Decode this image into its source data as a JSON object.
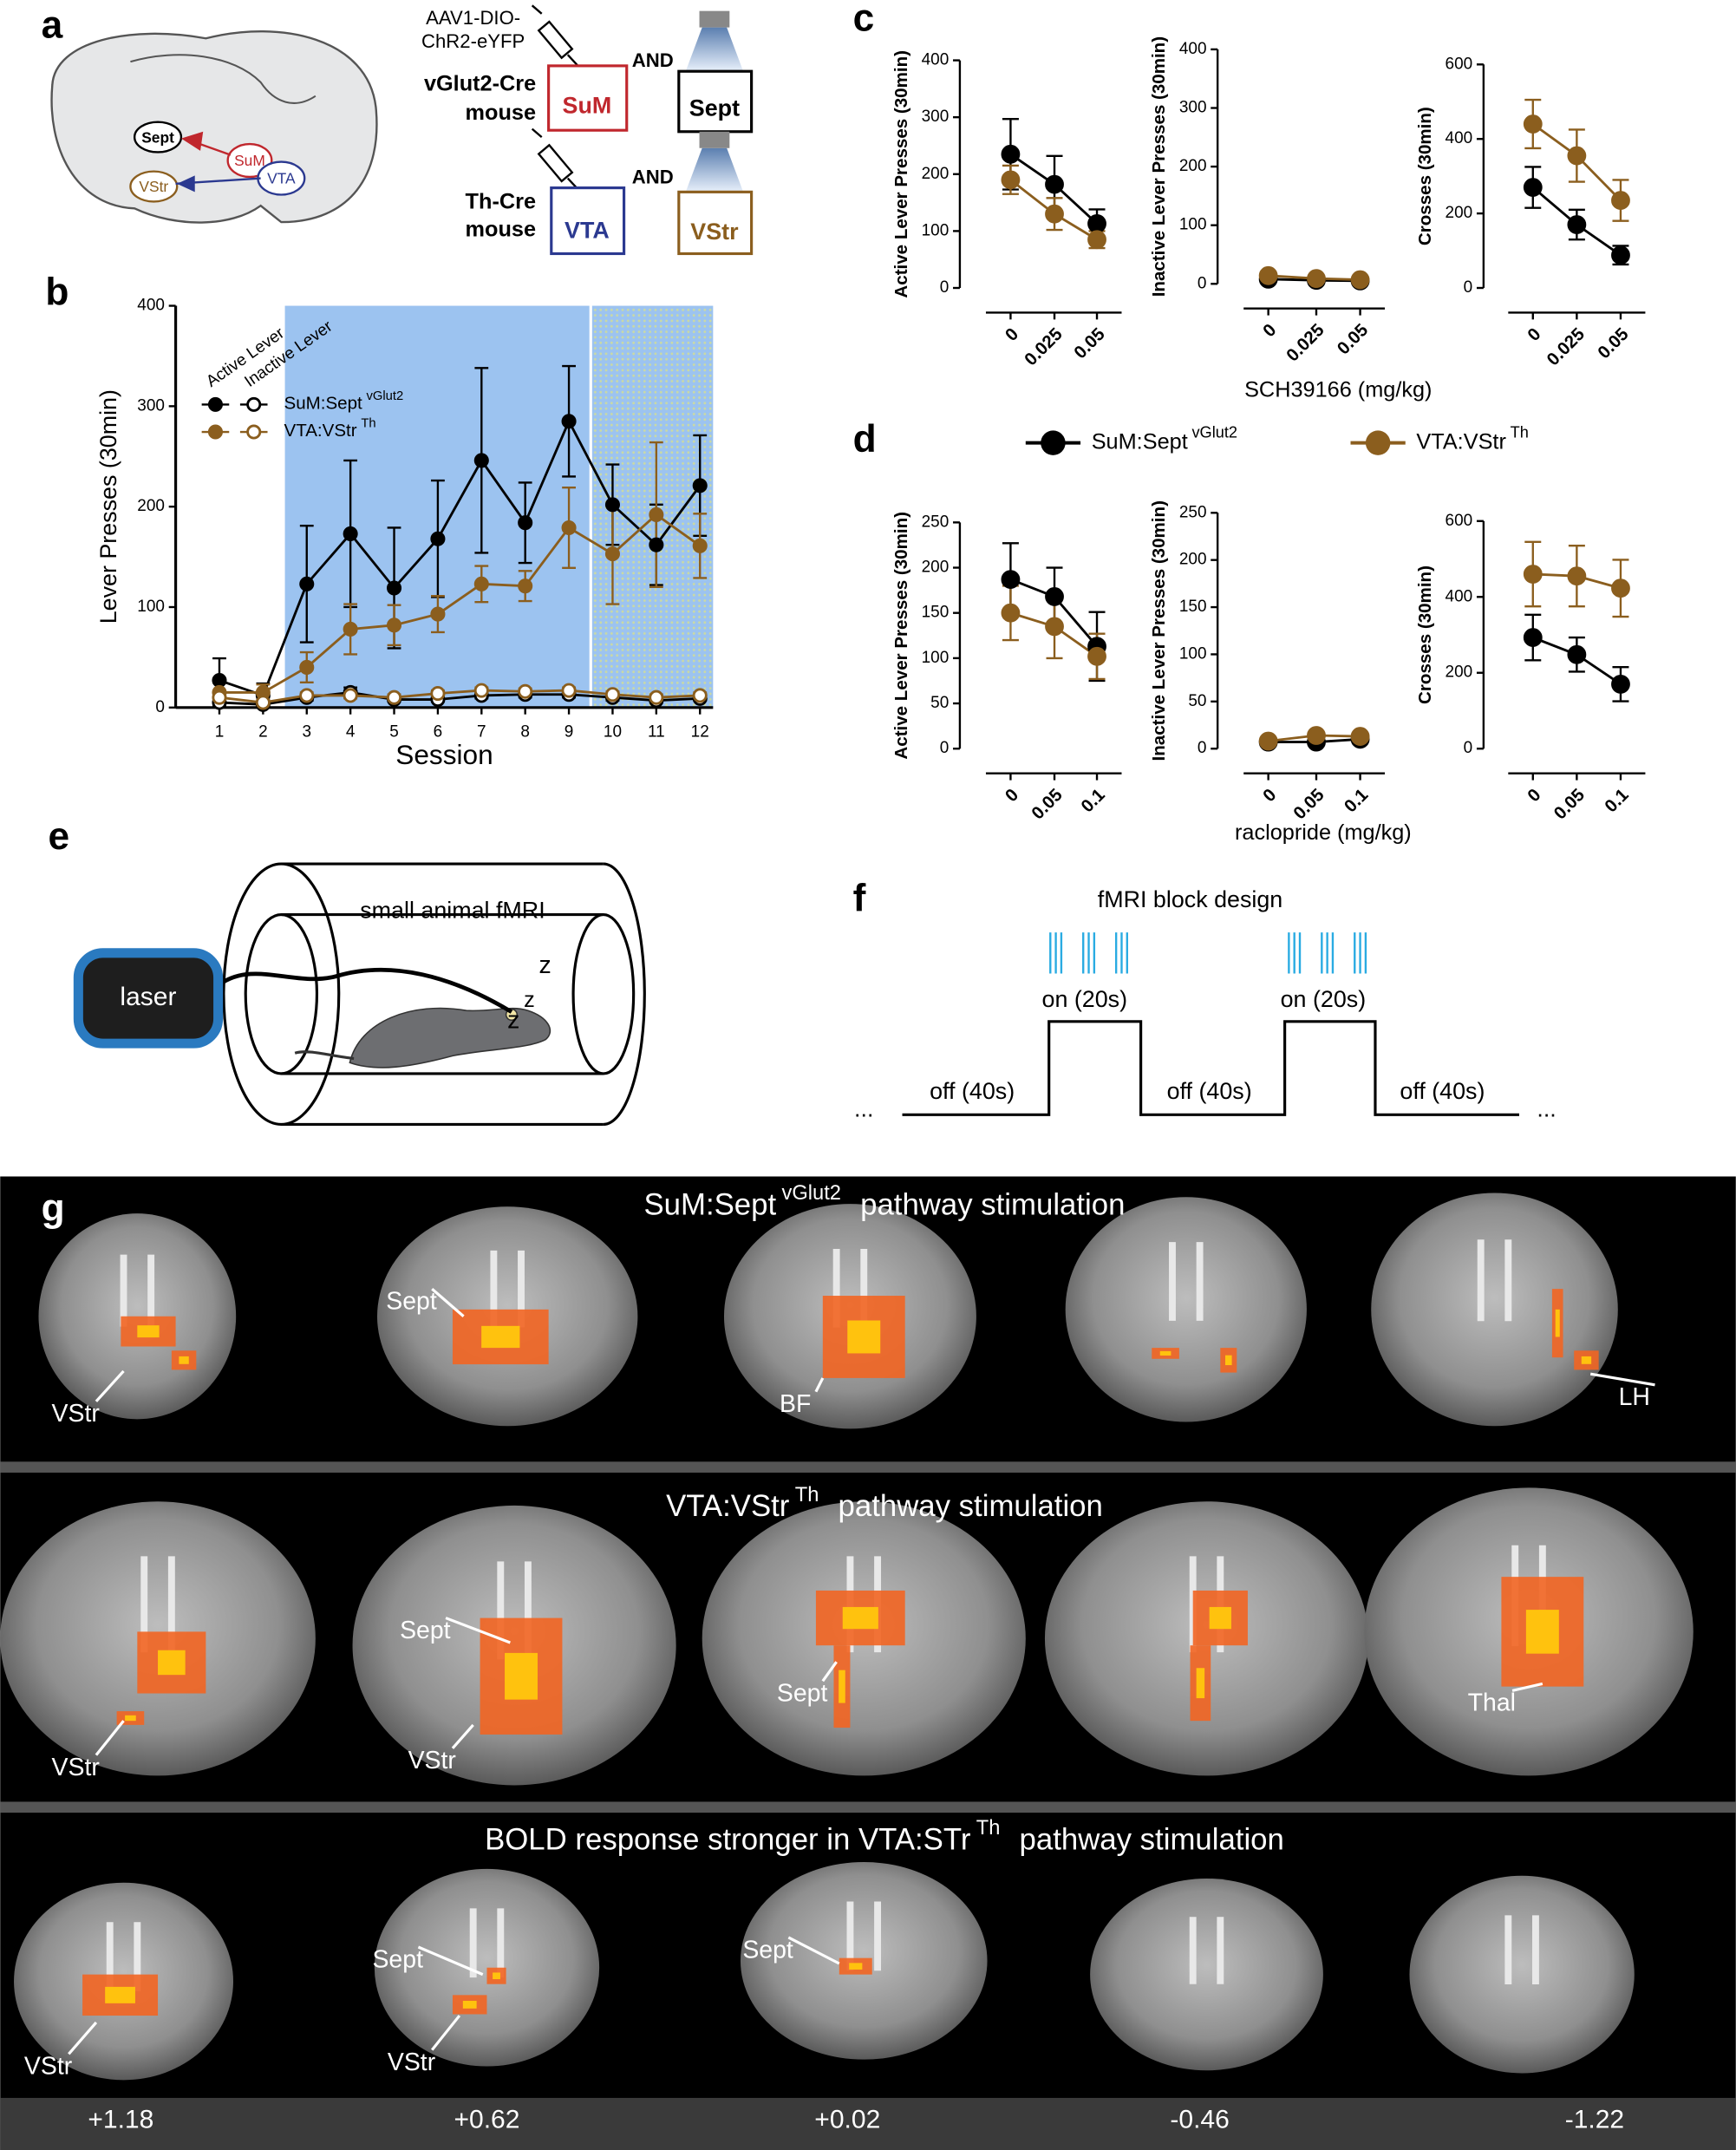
{
  "panel_labels": [
    "a",
    "b",
    "c",
    "d",
    "e",
    "f",
    "g"
  ],
  "panel_a": {
    "brain_labels": [
      "Sept",
      "SuM",
      "VStr",
      "VTA"
    ],
    "virus": [
      "AAV1-DIO-",
      "ChR2-eYFP"
    ],
    "rows": [
      {
        "mouse": [
          "vGlut2-Cre",
          "mouse"
        ],
        "source": "SuM",
        "and": "AND",
        "target": "Sept"
      },
      {
        "mouse": [
          "Th-Cre",
          "mouse"
        ],
        "source": "VTA",
        "and": "AND",
        "target": "VStr"
      }
    ]
  },
  "chart_data": [
    {
      "type": "line",
      "y_label": "Lever Presses (30min)",
      "x_label": "Session",
      "x": [
        1,
        2,
        3,
        4,
        5,
        6,
        7,
        8,
        9,
        10,
        11,
        12
      ],
      "xlim": [
        0,
        12.3
      ],
      "xticks": [
        1,
        2,
        3,
        4,
        5,
        6,
        7,
        8,
        9,
        10,
        11,
        12
      ],
      "ylim": [
        0,
        400
      ],
      "yticks": [
        0,
        100,
        200,
        300,
        400
      ],
      "shaded_regions": [
        {
          "from": 2.5,
          "to": 9.5,
          "color": "#9cc3f0"
        },
        {
          "from": 9.5,
          "to": 12.3,
          "color": "#a9c9d6",
          "pattern": "dotted"
        }
      ],
      "legend_columns": [
        "Active Lever",
        "Inactive Lever"
      ],
      "groups": [
        {
          "name": "SuM:Sept",
          "superscript": "vGlut2",
          "color": "#000000",
          "series": [
            {
              "marker": "filled",
              "values": [
                27,
                12,
                123,
                173,
                119,
                168,
                246,
                184,
                285,
                202,
                162,
                221
              ],
              "errors": [
                22,
                12,
                58,
                73,
                60,
                58,
                92,
                40,
                55,
                40,
                40,
                50
              ]
            },
            {
              "marker": "open",
              "values": [
                5,
                3,
                10,
                15,
                8,
                8,
                12,
                13,
                13,
                10,
                7,
                9
              ],
              "errors": [
                3,
                2,
                3,
                5,
                2,
                2,
                3,
                3,
                3,
                3,
                2,
                2
              ]
            }
          ]
        },
        {
          "name": "VTA:VStr",
          "superscript": "Th",
          "color": "#8b5e1e",
          "series": [
            {
              "marker": "filled",
              "values": [
                15,
                15,
                40,
                78,
                82,
                93,
                123,
                121,
                179,
                153,
                192,
                161
              ],
              "errors": [
                10,
                8,
                15,
                25,
                20,
                18,
                18,
                15,
                40,
                50,
                72,
                32
              ]
            },
            {
              "marker": "open",
              "values": [
                10,
                5,
                12,
                12,
                10,
                14,
                17,
                16,
                17,
                13,
                10,
                12
              ],
              "errors": [
                4,
                3,
                3,
                3,
                3,
                3,
                3,
                3,
                3,
                3,
                3,
                3
              ]
            }
          ]
        }
      ]
    },
    {
      "type": "line",
      "y_label": "Active Lever Presses (30min)",
      "categories": [
        "0",
        "0.025",
        "0.05"
      ],
      "ylim": [
        0,
        400
      ],
      "yticks": [
        0,
        100,
        200,
        300,
        400
      ],
      "series": [
        {
          "color": "#000000",
          "values": [
            235,
            182,
            113
          ],
          "errors": [
            62,
            50,
            25
          ]
        },
        {
          "color": "#8b5e1e",
          "values": [
            190,
            130,
            85
          ],
          "errors": [
            25,
            28,
            15
          ]
        }
      ]
    },
    {
      "type": "line",
      "y_label": "Inactive Lever Presses (30min)",
      "categories": [
        "0",
        "0.025",
        "0.05"
      ],
      "ylim": [
        0,
        400
      ],
      "yticks": [
        0,
        100,
        200,
        300,
        400
      ],
      "series": [
        {
          "color": "#000000",
          "values": [
            8,
            6,
            5
          ],
          "errors": [
            3,
            3,
            2
          ]
        },
        {
          "color": "#8b5e1e",
          "values": [
            14,
            9,
            7
          ],
          "errors": [
            4,
            3,
            2
          ]
        }
      ]
    },
    {
      "type": "line",
      "y_label": "Crosses (30min)",
      "categories": [
        "0",
        "0.025",
        "0.05"
      ],
      "ylim": [
        0,
        600
      ],
      "yticks": [
        0,
        200,
        400,
        600
      ],
      "series": [
        {
          "color": "#000000",
          "values": [
            270,
            170,
            88
          ],
          "errors": [
            55,
            40,
            25
          ]
        },
        {
          "color": "#8b5e1e",
          "values": [
            440,
            355,
            235
          ],
          "errors": [
            65,
            70,
            55
          ]
        }
      ]
    },
    {
      "type": "line",
      "y_label": "Active Lever Presses (30min)",
      "categories": [
        "0",
        "0.05",
        "0.1"
      ],
      "ylim": [
        0,
        250
      ],
      "yticks": [
        0,
        50,
        100,
        150,
        200,
        250
      ],
      "series": [
        {
          "color": "#000000",
          "values": [
            187,
            168,
            113
          ],
          "errors": [
            40,
            32,
            38
          ]
        },
        {
          "color": "#8b5e1e",
          "values": [
            150,
            135,
            102
          ],
          "errors": [
            30,
            35,
            25
          ]
        }
      ]
    },
    {
      "type": "line",
      "y_label": "Inactive Lever Presses (30min)",
      "categories": [
        "0",
        "0.05",
        "0.1"
      ],
      "ylim": [
        0,
        250
      ],
      "yticks": [
        0,
        50,
        100,
        150,
        200,
        250
      ],
      "series": [
        {
          "color": "#000000",
          "values": [
            7,
            7,
            10
          ],
          "errors": [
            2,
            2,
            3
          ]
        },
        {
          "color": "#8b5e1e",
          "values": [
            8,
            14,
            13
          ],
          "errors": [
            3,
            3,
            3
          ]
        }
      ]
    },
    {
      "type": "line",
      "y_label": "Crosses (30min)",
      "categories": [
        "0",
        "0.05",
        "0.1"
      ],
      "ylim": [
        0,
        600
      ],
      "yticks": [
        0,
        200,
        400,
        600
      ],
      "series": [
        {
          "color": "#000000",
          "values": [
            293,
            248,
            170
          ],
          "errors": [
            60,
            45,
            45
          ]
        },
        {
          "color": "#8b5e1e",
          "values": [
            460,
            455,
            423
          ],
          "errors": [
            85,
            80,
            75
          ]
        }
      ]
    }
  ],
  "panel_c": {
    "x_label": "SCH39166 (mg/kg)"
  },
  "panel_d": {
    "x_label": "raclopride (mg/kg)",
    "legend": [
      {
        "name": "SuM:Sept",
        "superscript": "vGlut2",
        "color": "#000000"
      },
      {
        "name": "VTA:VStr",
        "superscript": "Th",
        "color": "#8b5e1e"
      }
    ]
  },
  "panel_e": {
    "title": "small animal fMRI",
    "laser": "laser",
    "sleep": [
      "z",
      "z",
      "z"
    ]
  },
  "panel_f": {
    "title": "fMRI block design",
    "on": [
      "on (20s)",
      "on (20s)"
    ],
    "off": [
      "off (40s)",
      "off (40s)",
      "off (40s)"
    ],
    "ellipsis": [
      "...",
      "..."
    ]
  },
  "panel_g": {
    "rows": [
      {
        "title": "SuM:Sept",
        "superscript": "vGlut2",
        "title_end": "pathway stimulation",
        "labels": [
          "VStr",
          "Sept",
          "BF",
          "LH"
        ]
      },
      {
        "title": "VTA:VStr",
        "superscript": "Th",
        "title_end": "pathway stimulation",
        "labels": [
          "VStr",
          "Sept",
          "VStr",
          "Sept",
          "Thal"
        ]
      },
      {
        "title": "BOLD response stronger in VTA:STr",
        "superscript": "Th",
        "title_end": "pathway stimulation",
        "labels": [
          "VStr",
          "Sept",
          "VStr",
          "Sept"
        ]
      }
    ],
    "coordinates": [
      "+1.18",
      "+0.62",
      "+0.02",
      "-0.46",
      "-1.22"
    ]
  }
}
